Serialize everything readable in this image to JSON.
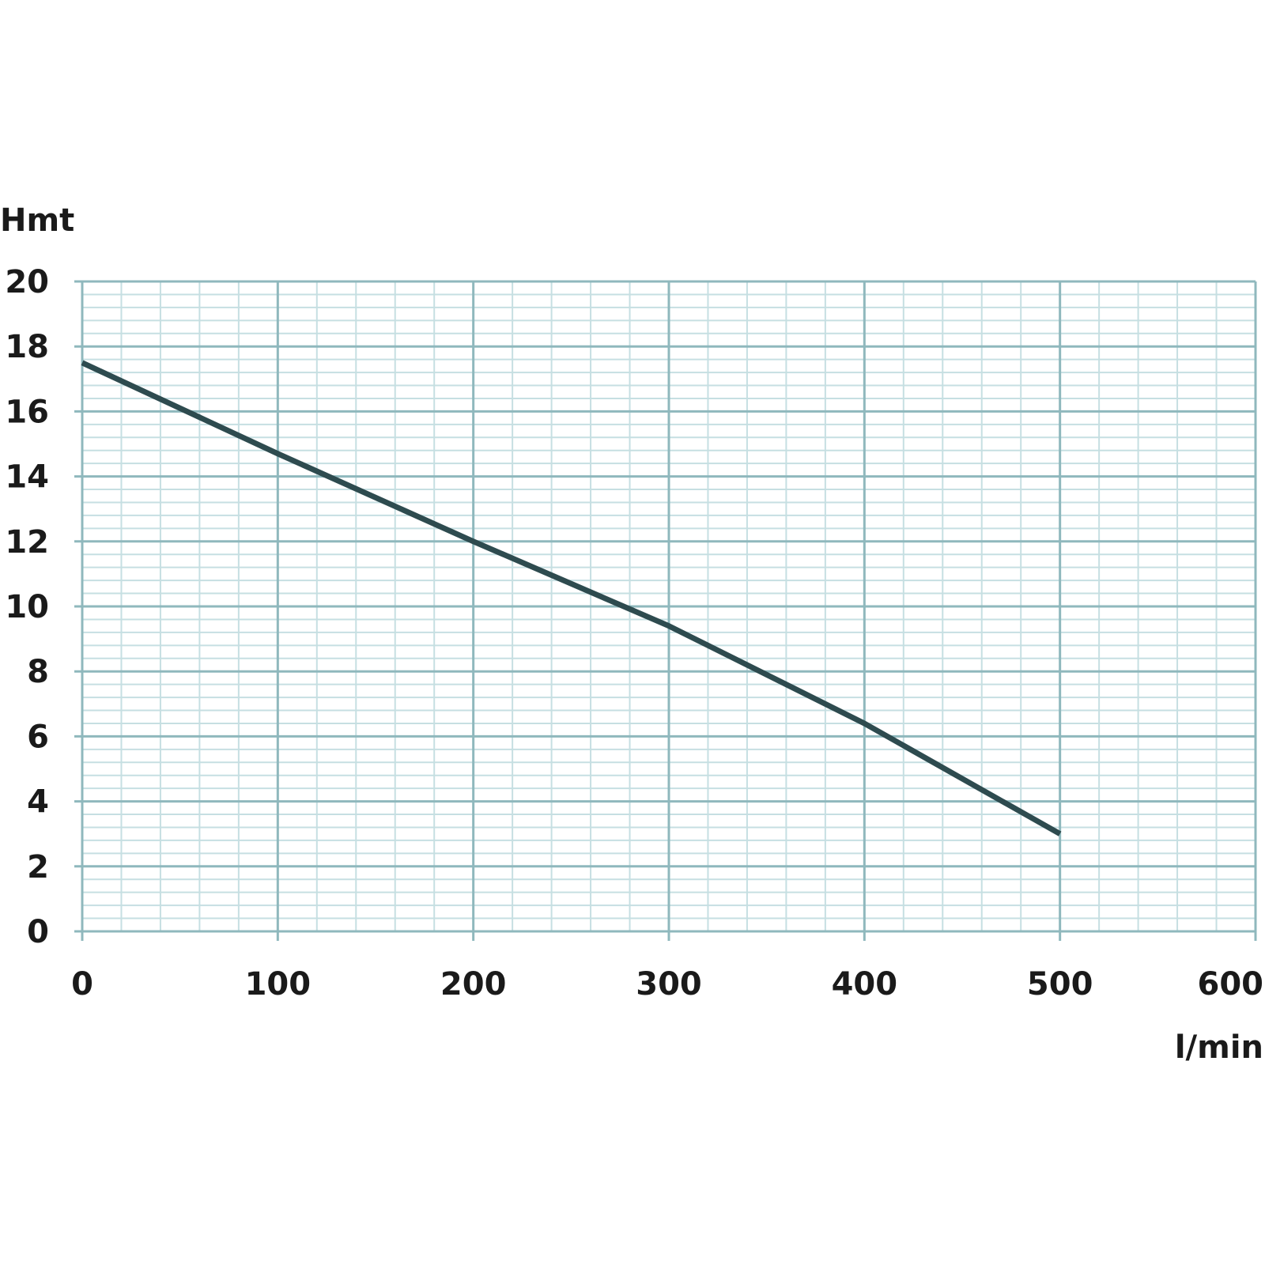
{
  "chart_data": {
    "type": "line",
    "ylabel": "Hmt",
    "xlabel": "l/min",
    "xlim": [
      0,
      600
    ],
    "ylim": [
      0,
      20
    ],
    "x_ticks": [
      "0",
      "100",
      "200",
      "300",
      "400",
      "500",
      "600"
    ],
    "y_ticks": [
      "0",
      "2",
      "4",
      "6",
      "8",
      "10",
      "12",
      "14",
      "16",
      "18",
      "20"
    ],
    "grid": true,
    "series": [
      {
        "x": [
          0,
          100,
          200,
          300,
          400,
          500
        ],
        "y": [
          17.5,
          14.7,
          12.0,
          9.4,
          6.4,
          3.0
        ]
      }
    ],
    "colors": {
      "grid_major": "#8fb8bd",
      "grid_minor": "#c6dfe2",
      "line": "#2e4b4f",
      "text": "#1a1a1a"
    }
  }
}
